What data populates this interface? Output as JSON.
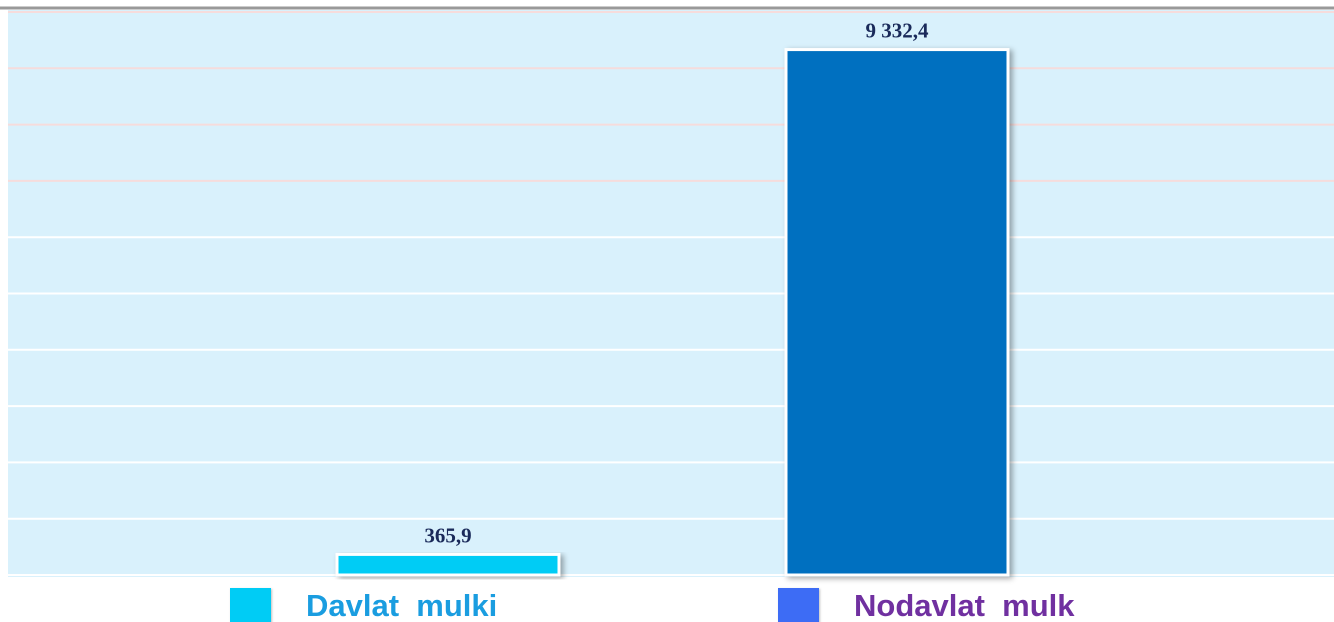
{
  "chart_data": {
    "type": "bar",
    "categories": [
      "Davlat  mulki",
      "Nodavlat  mulk"
    ],
    "values": [
      365.9,
      9332.4
    ],
    "value_labels": [
      "365,9",
      "9 332,4"
    ],
    "colors": [
      "#00ccf5",
      "#0070c0"
    ],
    "legend_colors": [
      "#00ccf5",
      "#3d6cf5"
    ],
    "legend_text_colors": [
      "#1a9de0",
      "#7030a0"
    ],
    "ylim": [
      0,
      10000
    ],
    "yticks": [
      0,
      1000,
      2000,
      3000,
      4000,
      5000,
      6000,
      7000,
      8000,
      9000,
      10000
    ],
    "grid": true
  }
}
